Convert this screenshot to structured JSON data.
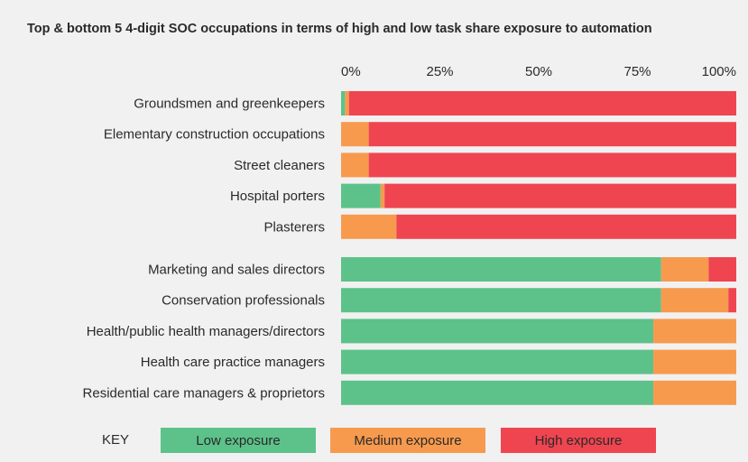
{
  "chart_data": {
    "type": "stacked_bar_horizontal",
    "title": "Top & bottom 5 4-digit SOC occupations in terms of high and low task share exposure to automation",
    "categories": [
      "Groundsmen and greenkeepers",
      "Elementary construction occupations",
      "Street cleaners",
      "Hospital porters",
      "Plasterers",
      "Marketing and sales directors",
      "Conservation professionals",
      "Health/public health managers/directors",
      "Health care practice managers",
      "Residential care managers & proprietors"
    ],
    "series": [
      {
        "name": "Low exposure",
        "color": "#5cc28a",
        "values": [
          1,
          0,
          0,
          10,
          0,
          81,
          81,
          79,
          79,
          79
        ]
      },
      {
        "name": "Medium exposure",
        "color": "#f79a4e",
        "values": [
          1,
          7,
          7,
          1,
          14,
          12,
          17,
          21,
          21,
          21
        ]
      },
      {
        "name": "High exposure",
        "color": "#ef4550",
        "values": [
          98,
          93,
          93,
          89,
          86,
          7,
          2,
          0,
          0,
          0
        ]
      }
    ],
    "xlim": [
      0,
      100
    ],
    "xticks": [
      {
        "value": 0,
        "label": "0%"
      },
      {
        "value": 25,
        "label": "25%"
      },
      {
        "value": 50,
        "label": "50%"
      },
      {
        "value": 75,
        "label": "75%"
      },
      {
        "value": 100,
        "label": "100%"
      }
    ],
    "legend_title": "KEY",
    "legend": "bottom"
  }
}
